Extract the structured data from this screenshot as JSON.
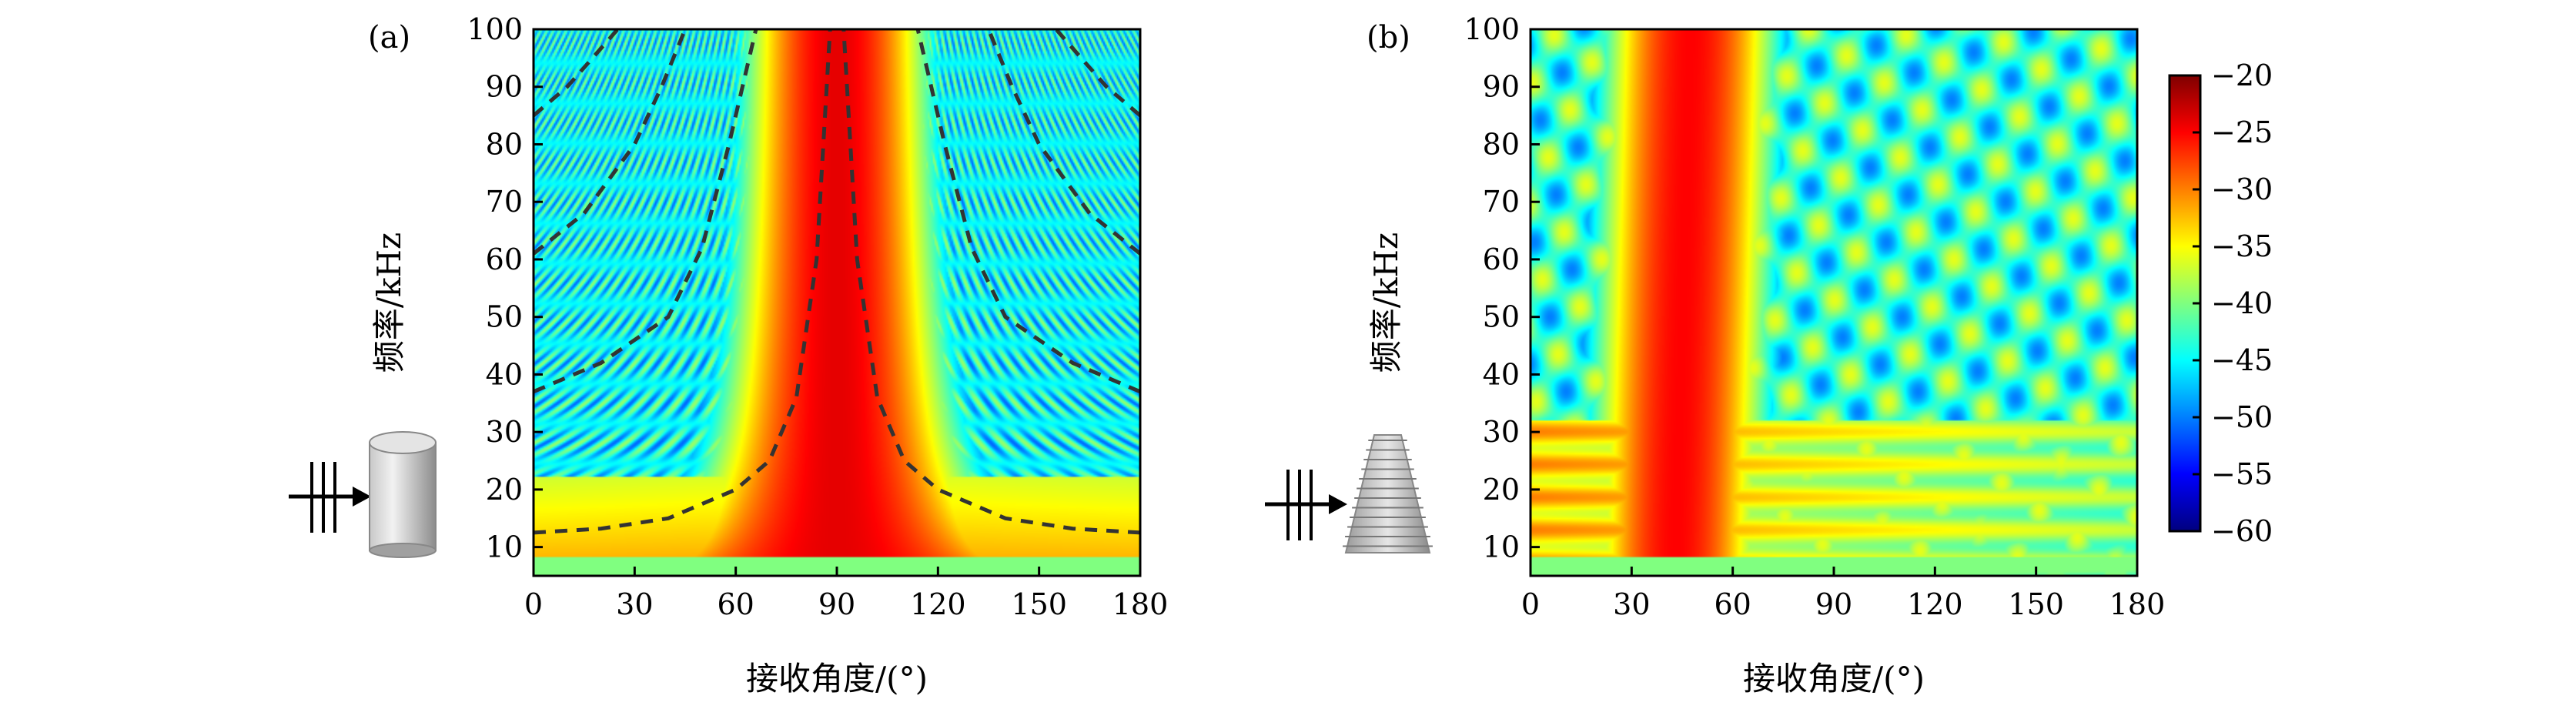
{
  "chart_data": [
    {
      "type": "heatmap",
      "panel_label": "(a)",
      "xlabel": "接收角度/(°)",
      "ylabel": "频率/kHz",
      "xlim": [
        0,
        180
      ],
      "ylim": [
        5,
        100
      ],
      "xticks": [
        0,
        30,
        60,
        90,
        120,
        150,
        180
      ],
      "yticks": [
        10,
        20,
        30,
        40,
        50,
        60,
        70,
        80,
        90,
        100
      ],
      "z_range": [
        -60,
        -20
      ],
      "main_lobe_center_deg": 90,
      "dashed_curves": {
        "style": "dashed",
        "color": "#333333",
        "symmetric_about_deg": 90,
        "curves": [
          {
            "points": [
              [
                0,
                12.5
              ],
              [
                20,
                13.2
              ],
              [
                40,
                15
              ],
              [
                60,
                20
              ],
              [
                70,
                25
              ],
              [
                78,
                36
              ],
              [
                84,
                60
              ],
              [
                88,
                100
              ]
            ]
          },
          {
            "points": [
              [
                0,
                37
              ],
              [
                20,
                42
              ],
              [
                40,
                50
              ],
              [
                50,
                62
              ],
              [
                58,
                80
              ],
              [
                66,
                100
              ]
            ]
          },
          {
            "points": [
              [
                0,
                61
              ],
              [
                15,
                68
              ],
              [
                30,
                80
              ],
              [
                38,
                90
              ],
              [
                45,
                100
              ]
            ]
          },
          {
            "points": [
              [
                0,
                85
              ],
              [
                10,
                90
              ],
              [
                25,
                100
              ]
            ]
          }
        ]
      },
      "icon": "cylinder-target-icon"
    },
    {
      "type": "heatmap",
      "panel_label": "(b)",
      "xlabel": "接收角度/(°)",
      "ylabel": "频率/kHz",
      "xlim": [
        0,
        180
      ],
      "ylim": [
        5,
        100
      ],
      "xticks": [
        0,
        30,
        60,
        90,
        120,
        150,
        180
      ],
      "yticks": [
        10,
        20,
        30,
        40,
        50,
        60,
        70,
        80,
        90,
        100
      ],
      "z_range": [
        -60,
        -20
      ],
      "main_lobe_center_deg": 45,
      "icon": "tapered-stack-target-icon"
    }
  ],
  "colorbar": {
    "min": -60,
    "max": -20,
    "ticks": [
      -20,
      -25,
      -30,
      -35,
      -40,
      -45,
      -50,
      -55,
      -60
    ],
    "tick_labels": [
      "−20",
      "−25",
      "−30",
      "−35",
      "−40",
      "−45",
      "−50",
      "−55",
      "−60"
    ],
    "colormap": [
      "#00007f",
      "#0000ff",
      "#007fff",
      "#00ffff",
      "#7fff7f",
      "#ffff00",
      "#ff7f00",
      "#ff0000",
      "#7f0000"
    ]
  }
}
